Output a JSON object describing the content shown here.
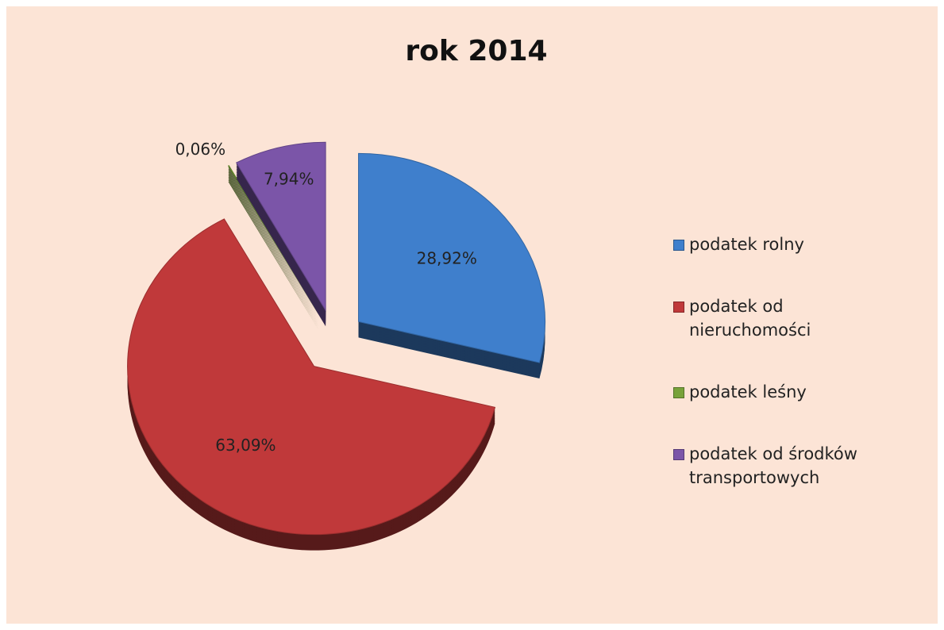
{
  "chart_data": {
    "type": "pie",
    "title": "rok 2014",
    "categories": [
      "podatek rolny",
      "podatek od nieruchomości",
      "podatek leśny",
      "podatek od środków transportowych"
    ],
    "values": [
      28.92,
      63.09,
      0.06,
      7.94
    ],
    "value_labels": [
      "28,92%",
      "63,09%",
      "0,06%",
      "7,94%"
    ],
    "colors": [
      "#3f7fcc",
      "#c0393a",
      "#77a23a",
      "#7b55a8"
    ],
    "legend": "right"
  }
}
